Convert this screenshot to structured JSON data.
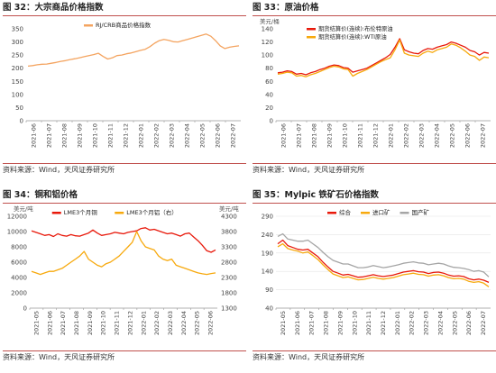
{
  "panels": [
    {
      "title": "图 32：大宗商品价格指数",
      "source": "资料来源：Wind，天风证券研究所"
    },
    {
      "title": "图 33：原油价格",
      "source": "资料来源：Wind，天风证券研究所"
    },
    {
      "title": "图 34：铜和铝价格",
      "source": "资料来源：Wind，天风证券研究所"
    },
    {
      "title": "图 35：Mylpic 铁矿石价格指数",
      "source": "资料来源：Wind，天风证券研究所"
    }
  ],
  "chart_data": [
    {
      "type": "line",
      "xticks": [
        "2021-06",
        "2021-07",
        "2021-08",
        "2021-09",
        "2021-10",
        "2021-11",
        "2021-12",
        "2022-01",
        "2022-02",
        "2022-03",
        "2022-04",
        "2022-05",
        "2022-06",
        "2022-07"
      ],
      "ylim": [
        0,
        350
      ],
      "yticks": [
        0,
        50,
        100,
        150,
        200,
        250,
        300,
        350
      ],
      "legend": "top-center",
      "grid": false,
      "series": [
        {
          "name": "RJ/CRB商品价格指数",
          "color": "#f4a460",
          "values": [
            208,
            210,
            213,
            215,
            216,
            219,
            222,
            226,
            229,
            233,
            236,
            240,
            244,
            248,
            252,
            257,
            245,
            235,
            240,
            248,
            250,
            255,
            258,
            263,
            268,
            272,
            282,
            295,
            305,
            310,
            306,
            301,
            300,
            305,
            310,
            315,
            320,
            325,
            330,
            322,
            305,
            285,
            275,
            280,
            283,
            285
          ]
        }
      ]
    },
    {
      "type": "line",
      "xticks": [
        "2021-06",
        "2021-07",
        "2021-08",
        "2021-09",
        "2021-10",
        "2021-11",
        "2021-12",
        "2022-01",
        "2022-02",
        "2022-03",
        "2022-04",
        "2022-05",
        "2022-06",
        "2022-07"
      ],
      "ylabel": "美元/桶",
      "ylim": [
        0,
        140
      ],
      "yticks": [
        0,
        20,
        40,
        60,
        80,
        100,
        120,
        140
      ],
      "legend": "top-center",
      "grid": false,
      "series": [
        {
          "name": "期货结算价(连续):布伦特原油",
          "color": "#e8190b",
          "values": [
            73,
            74,
            76,
            75,
            71,
            72,
            70,
            73,
            75,
            78,
            80,
            83,
            85,
            84,
            81,
            80,
            74,
            76,
            78,
            80,
            84,
            88,
            92,
            96,
            101,
            112,
            125,
            108,
            105,
            103,
            102,
            107,
            110,
            109,
            112,
            114,
            116,
            120,
            118,
            115,
            112,
            107,
            105,
            100,
            104,
            103
          ]
        },
        {
          "name": "期货结算价(连续):WTI原油",
          "color": "#f7a90d",
          "values": [
            71,
            72,
            74,
            73,
            68,
            69,
            67,
            70,
            72,
            75,
            78,
            81,
            83,
            82,
            79,
            78,
            68,
            72,
            75,
            78,
            82,
            86,
            90,
            93,
            96,
            108,
            123,
            103,
            100,
            99,
            98,
            103,
            106,
            104,
            108,
            110,
            112,
            117,
            115,
            111,
            106,
            100,
            98,
            92,
            97,
            96
          ]
        }
      ]
    },
    {
      "type": "line",
      "xticks": [
        "2021-05",
        "2021-06",
        "2021-07",
        "2021-08",
        "2021-09",
        "2021-10",
        "2021-11",
        "2021-12",
        "2022-01",
        "2022-02",
        "2022-03",
        "2022-04",
        "2022-05",
        "2022-06"
      ],
      "ylabel": "美元/吨",
      "ylabel_right": "美元/吨",
      "ylim": [
        0,
        12000
      ],
      "yticks": [
        0,
        2000,
        4000,
        6000,
        8000,
        10000,
        12000
      ],
      "ylim_right": [
        1300,
        4300
      ],
      "yticks_right": [
        1300,
        1800,
        2300,
        2800,
        3300,
        3800,
        4300
      ],
      "legend": "top-center",
      "grid": false,
      "series": [
        {
          "name": "LME3个月铜",
          "color": "#e8190b",
          "axis": "left",
          "values": [
            10100,
            9900,
            9700,
            9500,
            9600,
            9350,
            9700,
            9500,
            9400,
            9600,
            9450,
            9400,
            9600,
            9800,
            10200,
            9800,
            9500,
            9600,
            9700,
            9900,
            9800,
            9700,
            9900,
            10000,
            10100,
            10400,
            10500,
            10200,
            10300,
            10100,
            9900,
            9700,
            9800,
            9600,
            9400,
            9700,
            9800,
            9300,
            8800,
            8200,
            7500,
            7300,
            7600
          ]
        },
        {
          "name": "LME3个月铝（右）",
          "color": "#f7a90d",
          "axis": "right",
          "values": [
            2500,
            2450,
            2400,
            2450,
            2500,
            2500,
            2550,
            2600,
            2700,
            2800,
            2900,
            3000,
            3150,
            2900,
            2800,
            2700,
            2650,
            2750,
            2800,
            2900,
            3000,
            3150,
            3300,
            3450,
            3800,
            3500,
            3300,
            3250,
            3200,
            3000,
            2900,
            2850,
            2900,
            2700,
            2650,
            2600,
            2550,
            2500,
            2450,
            2420,
            2400,
            2430,
            2450
          ]
        }
      ]
    },
    {
      "type": "line",
      "xticks": [
        "2021-05",
        "2021-06",
        "2021-07",
        "2021-08",
        "2021-09",
        "2021-10",
        "2021-11",
        "2021-12",
        "2022-01",
        "2022-02",
        "2022-03",
        "2022-04",
        "2022-05",
        "2022-06",
        "2022-07"
      ],
      "ylim": [
        40,
        290
      ],
      "yticks": [
        40,
        90,
        140,
        190,
        240,
        290
      ],
      "legend": "top-center",
      "grid": true,
      "series": [
        {
          "name": "综合",
          "color": "#e8190b",
          "values": [
            215,
            225,
            210,
            205,
            200,
            198,
            200,
            190,
            180,
            165,
            152,
            140,
            135,
            130,
            132,
            128,
            124,
            125,
            128,
            131,
            128,
            126,
            128,
            130,
            134,
            138,
            140,
            142,
            139,
            138,
            134,
            137,
            138,
            135,
            130,
            127,
            128,
            126,
            120,
            117,
            119,
            116,
            110
          ]
        },
        {
          "name": "进口矿",
          "color": "#f7a90d",
          "values": [
            207,
            215,
            202,
            198,
            195,
            190,
            193,
            183,
            172,
            158,
            145,
            133,
            128,
            123,
            125,
            121,
            117,
            118,
            121,
            124,
            121,
            119,
            121,
            123,
            127,
            131,
            133,
            135,
            132,
            131,
            127,
            130,
            131,
            128,
            123,
            120,
            121,
            119,
            113,
            110,
            112,
            108,
            98
          ]
        },
        {
          "name": "国产矿",
          "color": "#a5a5a5",
          "values": [
            235,
            242,
            228,
            225,
            222,
            222,
            225,
            215,
            205,
            192,
            180,
            170,
            165,
            160,
            160,
            155,
            150,
            150,
            152,
            156,
            153,
            150,
            152,
            155,
            158,
            162,
            164,
            166,
            163,
            162,
            158,
            160,
            162,
            160,
            155,
            151,
            150,
            148,
            145,
            140,
            142,
            138,
            125
          ]
        }
      ]
    }
  ]
}
